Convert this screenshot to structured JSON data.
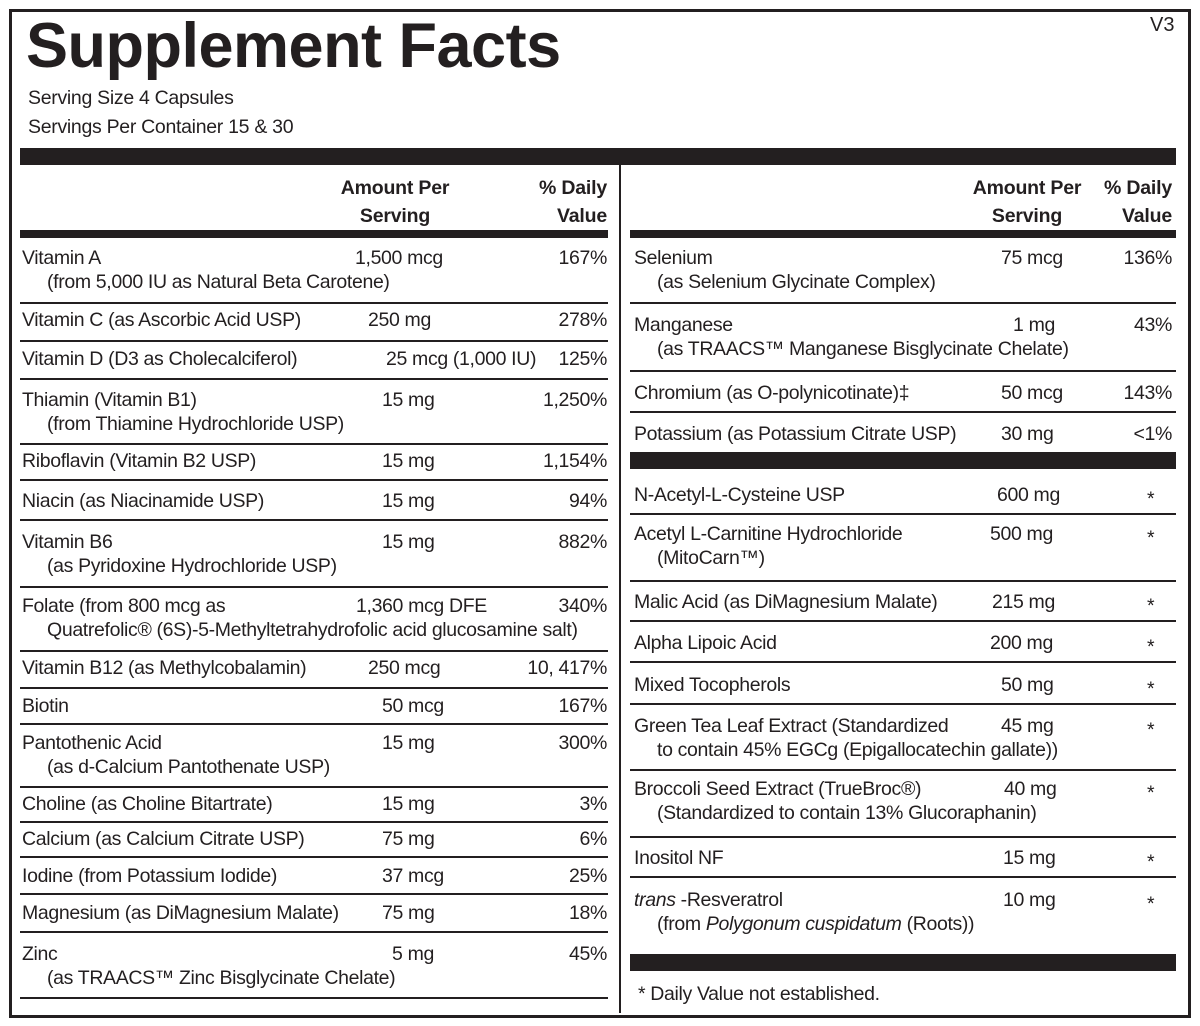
{
  "header": {
    "title": "Supplement Facts",
    "version": "V3",
    "serving_size": "Serving Size  4 Capsules",
    "servings_per_container": "Servings Per Container  15 & 30"
  },
  "columns": {
    "amount_line1": "Amount Per",
    "amount_line2": "Serving",
    "dv_line1": "% Daily",
    "dv_line2": "Value"
  },
  "left_rows": [
    {
      "name": "Vitamin A",
      "sub": "(from 5,000 IU as Natural Beta Carotene)",
      "amount": "1,500 mcg",
      "dv": "167%"
    },
    {
      "name": "Vitamin C (as Ascorbic Acid USP)",
      "amount": "250 mg",
      "dv": "278%"
    },
    {
      "name": "Vitamin D (D3 as Cholecalciferol)",
      "amount": "25 mcg (1,000 IU)",
      "dv": "125%"
    },
    {
      "name": "Thiamin (Vitamin B1)",
      "sub": "(from Thiamine Hydrochloride USP)",
      "amount": "15 mg",
      "dv": "1,250%"
    },
    {
      "name": "Riboflavin (Vitamin B2 USP)",
      "amount": "15 mg",
      "dv": "1,154%"
    },
    {
      "name": "Niacin (as Niacinamide USP)",
      "amount": "15 mg",
      "dv": "94%"
    },
    {
      "name": "Vitamin B6",
      "sub": "(as Pyridoxine Hydrochloride USP)",
      "amount": "15 mg",
      "dv": "882%"
    },
    {
      "name": "Folate (from 800 mcg as",
      "sub": "Quatrefolic® (6S)-5-Methyltetrahydrofolic acid glucosamine salt)",
      "amount": "1,360 mcg DFE",
      "dv": "340%"
    },
    {
      "name": "Vitamin B12 (as Methylcobalamin)",
      "amount": "250 mcg",
      "dv": "10, 417%"
    },
    {
      "name": "Biotin",
      "amount": "50 mcg",
      "dv": "167%"
    },
    {
      "name": "Pantothenic Acid",
      "sub": "(as d-Calcium Pantothenate USP)",
      "amount": "15 mg",
      "dv": "300%"
    },
    {
      "name": "Choline (as Choline Bitartrate)",
      "amount": "15 mg",
      "dv": "3%"
    },
    {
      "name": "Calcium (as Calcium Citrate USP)",
      "amount": "75 mg",
      "dv": "6%"
    },
    {
      "name": "Iodine (from Potassium Iodide)",
      "amount": "37 mcg",
      "dv": "25%"
    },
    {
      "name": "Magnesium (as DiMagnesium Malate)",
      "amount": "75 mg",
      "dv": "18%"
    },
    {
      "name": "Zinc",
      "sub": "(as TRAACS™ Zinc Bisglycinate Chelate)",
      "amount": "5 mg",
      "dv": "45%"
    }
  ],
  "right_rows": [
    {
      "name": "Selenium",
      "sub": "(as Selenium Glycinate Complex)",
      "amount": "75 mcg",
      "dv": "136%"
    },
    {
      "name": "Manganese",
      "sub": "(as TRAACS™ Manganese Bisglycinate Chelate)",
      "amount": "1 mg",
      "dv": "43%"
    },
    {
      "name": "Chromium (as O-polynicotinate)‡",
      "amount": "50 mcg",
      "dv": "143%"
    },
    {
      "name": "Potassium (as Potassium Citrate USP)",
      "amount": "30 mg",
      "dv": "<1%"
    },
    {
      "name": "N-Acetyl-L-Cysteine USP",
      "amount": "600 mg",
      "dv": "*"
    },
    {
      "name": "Acetyl L-Carnitine Hydrochloride",
      "sub": "(MitoCarn™)",
      "amount": "500 mg",
      "dv": "*"
    },
    {
      "name": "Malic Acid (as DiMagnesium Malate)",
      "amount": "215 mg",
      "dv": "*"
    },
    {
      "name": "Alpha Lipoic Acid",
      "amount": "200 mg",
      "dv": "*"
    },
    {
      "name": "Mixed Tocopherols",
      "amount": "50 mg",
      "dv": "*"
    },
    {
      "name": "Green Tea Leaf Extract (Standardized",
      "sub": "to contain 45% EGCg (Epigallocatechin gallate))",
      "amount": "45 mg",
      "dv": "*"
    },
    {
      "name": "Broccoli Seed Extract (TrueBroc®)",
      "sub": "(Standardized to contain 13% Glucoraphanin)",
      "amount": "40 mg",
      "dv": "*"
    },
    {
      "name": "Inositol NF",
      "amount": "15 mg",
      "dv": "*"
    },
    {
      "name": [
        {
          "t": "trans",
          "i": true
        },
        {
          "t": " -Resveratrol",
          "i": false
        }
      ],
      "sub": [
        {
          "t": "(from ",
          "i": false
        },
        {
          "t": "Polygonum cuspidatum",
          "i": true
        },
        {
          "t": " (Roots))",
          "i": false
        }
      ],
      "amount": "10 mg",
      "dv": "*"
    }
  ],
  "footnote": "*  Daily Value not established."
}
